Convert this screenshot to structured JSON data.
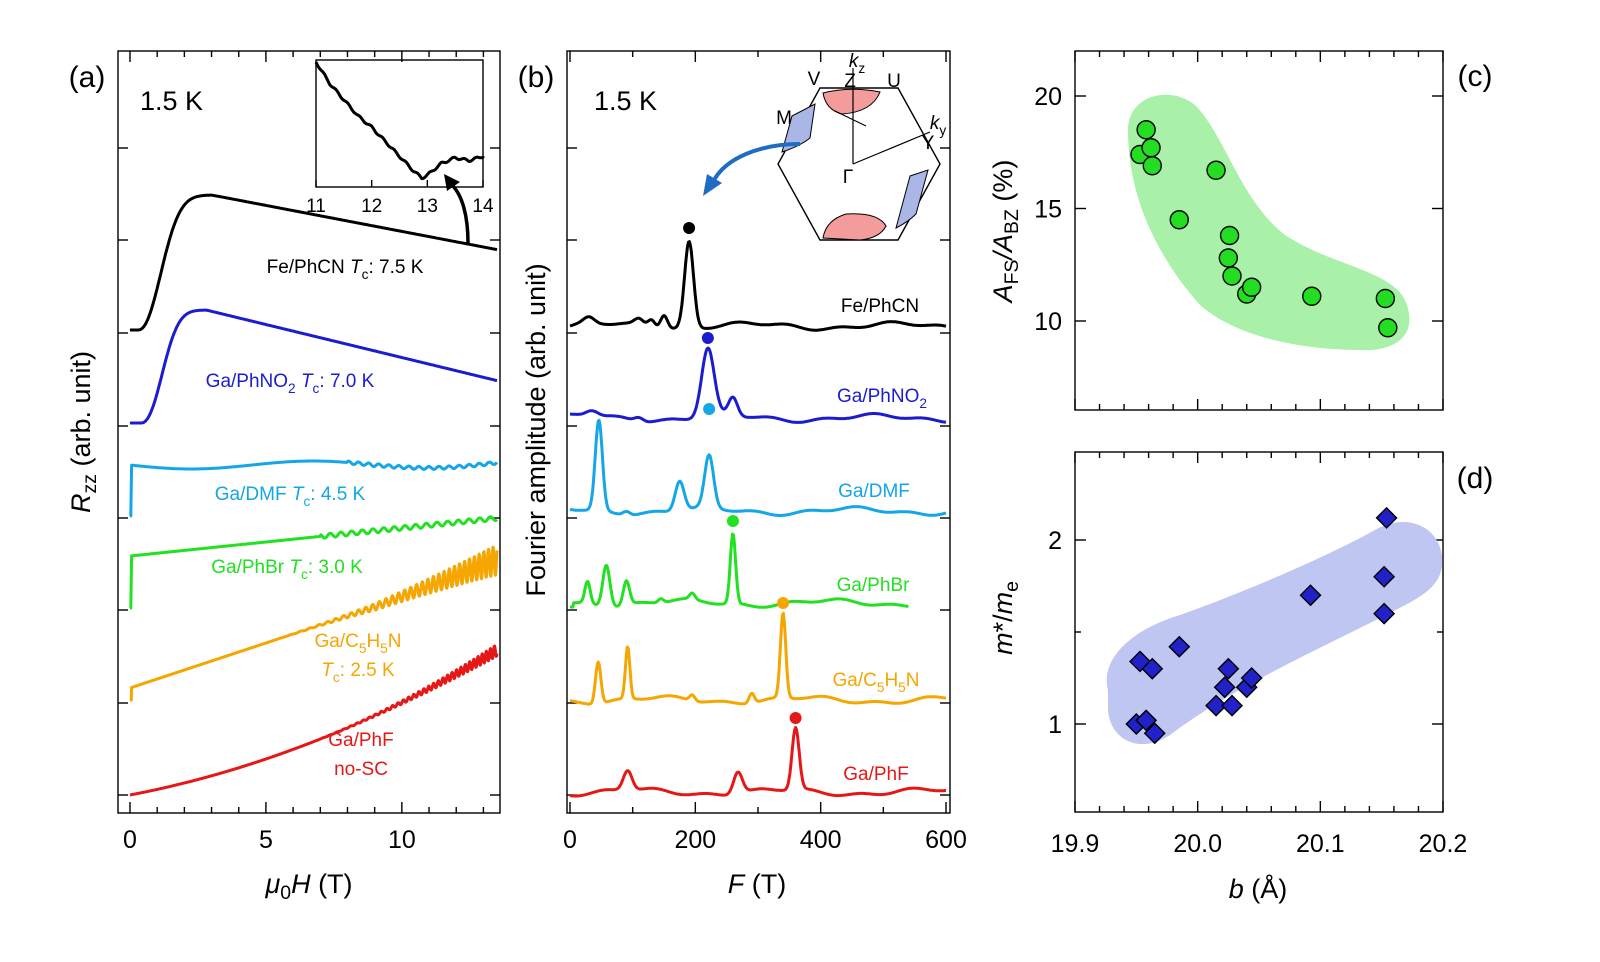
{
  "figure": {
    "panel_a": {
      "label": "(a)",
      "temp_label": "1.5 K",
      "xlabel_parts": [
        "μ",
        "0",
        "H",
        " (T)"
      ],
      "ylabel_parts": [
        "R",
        "zz",
        " (arb. unit)"
      ],
      "xticks": [
        "0",
        "5",
        "10"
      ],
      "inset": {
        "xticks": [
          "11",
          "12",
          "13",
          "14"
        ],
        "x": [
          11,
          11.25,
          11.5,
          11.75,
          12,
          12.25,
          12.5,
          12.75,
          12.9,
          13,
          13.25,
          13.5,
          13.75,
          14
        ],
        "y": [
          1.0,
          0.85,
          0.74,
          0.63,
          0.55,
          0.45,
          0.35,
          0.25,
          0.2,
          0.22,
          0.3,
          0.34,
          0.32,
          0.35
        ]
      },
      "curves": [
        {
          "name": "Fe/PhCN",
          "tc_label": "7.5 K",
          "color": "#000000",
          "lines": [
            [
              "Fe/PhCN ",
              "T",
              "c",
              ": 7.5 K"
            ]
          ]
        },
        {
          "name": "Ga/PhNO2",
          "tc_label": "7.0 K",
          "color": "#1c1ccf",
          "lines": [
            [
              "Ga/PhNO",
              "2",
              " ",
              "T",
              "c",
              ": 7.0 K"
            ]
          ]
        },
        {
          "name": "Ga/DMF",
          "tc_label": "4.5 K",
          "color": "#14a6e6",
          "lines": [
            [
              "Ga/DMF ",
              "T",
              "c",
              ": 4.5 K"
            ]
          ]
        },
        {
          "name": "Ga/PhBr",
          "tc_label": "3.0 K",
          "color": "#22e022",
          "lines": [
            [
              "Ga/PhBr ",
              "T",
              "c",
              ": 3.0 K"
            ]
          ]
        },
        {
          "name": "Ga/C5H5N",
          "tc_label": "2.5 K",
          "color": "#f6a600",
          "lines": [
            [
              "Ga/C",
              "5",
              "H",
              "5",
              "N"
            ],
            [
              "T",
              "c",
              ": 2.5 K"
            ]
          ]
        },
        {
          "name": "Ga/PhF",
          "tc_label": "no-SC",
          "color": "#e61717",
          "lines": [
            [
              "Ga/PhF"
            ],
            [
              "no-SC"
            ]
          ]
        }
      ]
    },
    "panel_b": {
      "label": "(b)",
      "temp_label": "1.5 K",
      "xlabel_parts": [
        "F",
        " (T)"
      ],
      "ylabel": "Fourier amplitude (arb. unit)",
      "xticks": [
        "0",
        "200",
        "400",
        "600"
      ],
      "bz_labels": {
        "kz": "k",
        "kz_sub": "z",
        "ky": "k",
        "ky_sub": "y",
        "V": "V",
        "Z": "Z",
        "U": "U",
        "M": "M",
        "Y": "Y",
        "Gamma": "Γ"
      },
      "spectra": [
        {
          "name": "Fe/PhCN",
          "label_parts": [
            "Fe/PhCN"
          ],
          "color": "#000000",
          "main_peak_T": 190,
          "minor_peaks_T": [
            150
          ]
        },
        {
          "name": "Ga/PhNO2",
          "label_parts": [
            "Ga/PhNO",
            "2"
          ],
          "color": "#1c1ccf",
          "main_peak_T": 220,
          "minor_peaks_T": []
        },
        {
          "name": "Ga/DMF",
          "label_parts": [
            "Ga/DMF"
          ],
          "color": "#14a6e6",
          "main_peak_T": 222,
          "minor_peaks_T": [
            46,
            175
          ]
        },
        {
          "name": "Ga/PhBr",
          "label_parts": [
            "Ga/PhBr"
          ],
          "color": "#22e022",
          "main_peak_T": 260,
          "minor_peaks_T": [
            30,
            58,
            90,
            195
          ]
        },
        {
          "name": "Ga/C5H5N",
          "label_parts": [
            "Ga/C",
            "5",
            "H",
            "5",
            "N"
          ],
          "color": "#f6a600",
          "main_peak_T": 340,
          "minor_peaks_T": [
            45,
            92,
            195,
            290
          ]
        },
        {
          "name": "Ga/PhF",
          "label_parts": [
            "Ga/PhF"
          ],
          "color": "#e61717",
          "main_peak_T": 360,
          "minor_peaks_T": [
            92,
            268
          ]
        }
      ]
    },
    "panel_c": {
      "label": "(c)",
      "ylabel_parts": [
        "A",
        "FS",
        "/A",
        "BZ",
        " (%)"
      ],
      "yticks": [
        "10",
        "15",
        "20"
      ]
    },
    "panel_d": {
      "label": "(d)",
      "ylabel_parts": [
        "m",
        "*/",
        "m",
        "e"
      ],
      "yticks": [
        "1",
        "2"
      ],
      "xticks": [
        "19.9",
        "20.0",
        "20.1",
        "20.2"
      ],
      "xlabel_parts": [
        "b",
        " (Å)"
      ]
    }
  },
  "chart_data": [
    {
      "type": "line",
      "title": "(a) 1.5 K",
      "xlabel": "μ0H (T)",
      "ylabel": "Rzz (arb. unit)",
      "xlim": [
        0,
        13.5
      ],
      "series": [
        {
          "name": "Fe/PhCN",
          "Tc_K": 7.5
        },
        {
          "name": "Ga/PhNO2",
          "Tc_K": 7.0
        },
        {
          "name": "Ga/DMF",
          "Tc_K": 4.5
        },
        {
          "name": "Ga/PhBr",
          "Tc_K": 3.0
        },
        {
          "name": "Ga/C5H5N",
          "Tc_K": 2.5
        },
        {
          "name": "Ga/PhF",
          "Tc_K": null
        }
      ]
    },
    {
      "type": "line",
      "title": "(b) 1.5 K",
      "xlabel": "F (T)",
      "ylabel": "Fourier amplitude (arb. unit)",
      "xlim": [
        0,
        600
      ],
      "series": [
        {
          "name": "Fe/PhCN",
          "peak_T": 190
        },
        {
          "name": "Ga/PhNO2",
          "peak_T": 220
        },
        {
          "name": "Ga/DMF",
          "peak_T": 222
        },
        {
          "name": "Ga/PhBr",
          "peak_T": 260
        },
        {
          "name": "Ga/C5H5N",
          "peak_T": 340
        },
        {
          "name": "Ga/PhF",
          "peak_T": 360
        }
      ]
    },
    {
      "type": "scatter",
      "title": "(c)",
      "xlabel": "b (Å)",
      "ylabel": "AFS/ABZ (%)",
      "xlim": [
        19.9,
        20.2
      ],
      "ylim": [
        6.1,
        22.3
      ],
      "marker": "circle",
      "color": "#22dd22",
      "x": [
        19.953,
        19.958,
        19.962,
        19.963,
        19.985,
        20.015,
        20.026,
        20.025,
        20.028,
        20.04,
        20.044,
        20.093,
        20.153,
        20.155
      ],
      "y": [
        17.4,
        18.5,
        17.7,
        16.9,
        14.5,
        16.7,
        13.8,
        12.8,
        12.0,
        11.2,
        11.5,
        11.1,
        11.0,
        9.7
      ]
    },
    {
      "type": "scatter",
      "title": "(d)",
      "xlabel": "b (Å)",
      "ylabel": "m*/me",
      "xlim": [
        19.9,
        20.2
      ],
      "ylim": [
        0.55,
        2.5
      ],
      "marker": "diamond",
      "color": "#2121c8",
      "x": [
        19.95,
        19.953,
        19.958,
        19.965,
        19.963,
        19.985,
        20.015,
        20.025,
        20.022,
        20.028,
        20.04,
        20.044,
        20.092,
        20.152,
        20.152,
        20.154
      ],
      "y": [
        1.0,
        1.34,
        1.02,
        0.95,
        1.3,
        1.42,
        1.1,
        1.3,
        1.2,
        1.1,
        1.2,
        1.25,
        1.7,
        1.8,
        1.6,
        2.12
      ]
    }
  ]
}
